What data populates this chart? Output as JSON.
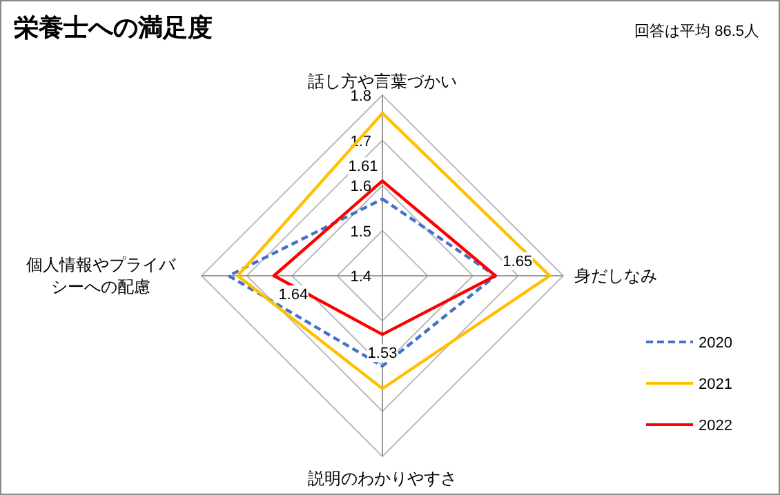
{
  "chart_data": {
    "type": "radar",
    "title": "栄養士への満足度",
    "annotations": [
      "回答は平均 86.5人"
    ],
    "categories": [
      "話し方や言葉づかい",
      "身だしなみ",
      "説明のわかりやすさ",
      "個人情報やプライバシーへの配慮"
    ],
    "ylim": [
      1.4,
      1.8
    ],
    "yticks": [
      1.4,
      1.5,
      1.6,
      1.7,
      1.8
    ],
    "legend": "right",
    "grid": true,
    "series": [
      {
        "name": "2020",
        "color": "#4472c4",
        "line_style": "dashed",
        "values": [
          1.57,
          1.65,
          1.6,
          1.74
        ]
      },
      {
        "name": "2021",
        "color": "#ffc000",
        "line_style": "solid",
        "values": [
          1.76,
          1.77,
          1.65,
          1.72
        ]
      },
      {
        "name": "2022",
        "color": "#ff0000",
        "line_style": "solid",
        "values": [
          1.61,
          1.65,
          1.53,
          1.64
        ],
        "value_labels": [
          "1.61",
          "1.65",
          "1.53",
          "1.64"
        ]
      }
    ]
  }
}
